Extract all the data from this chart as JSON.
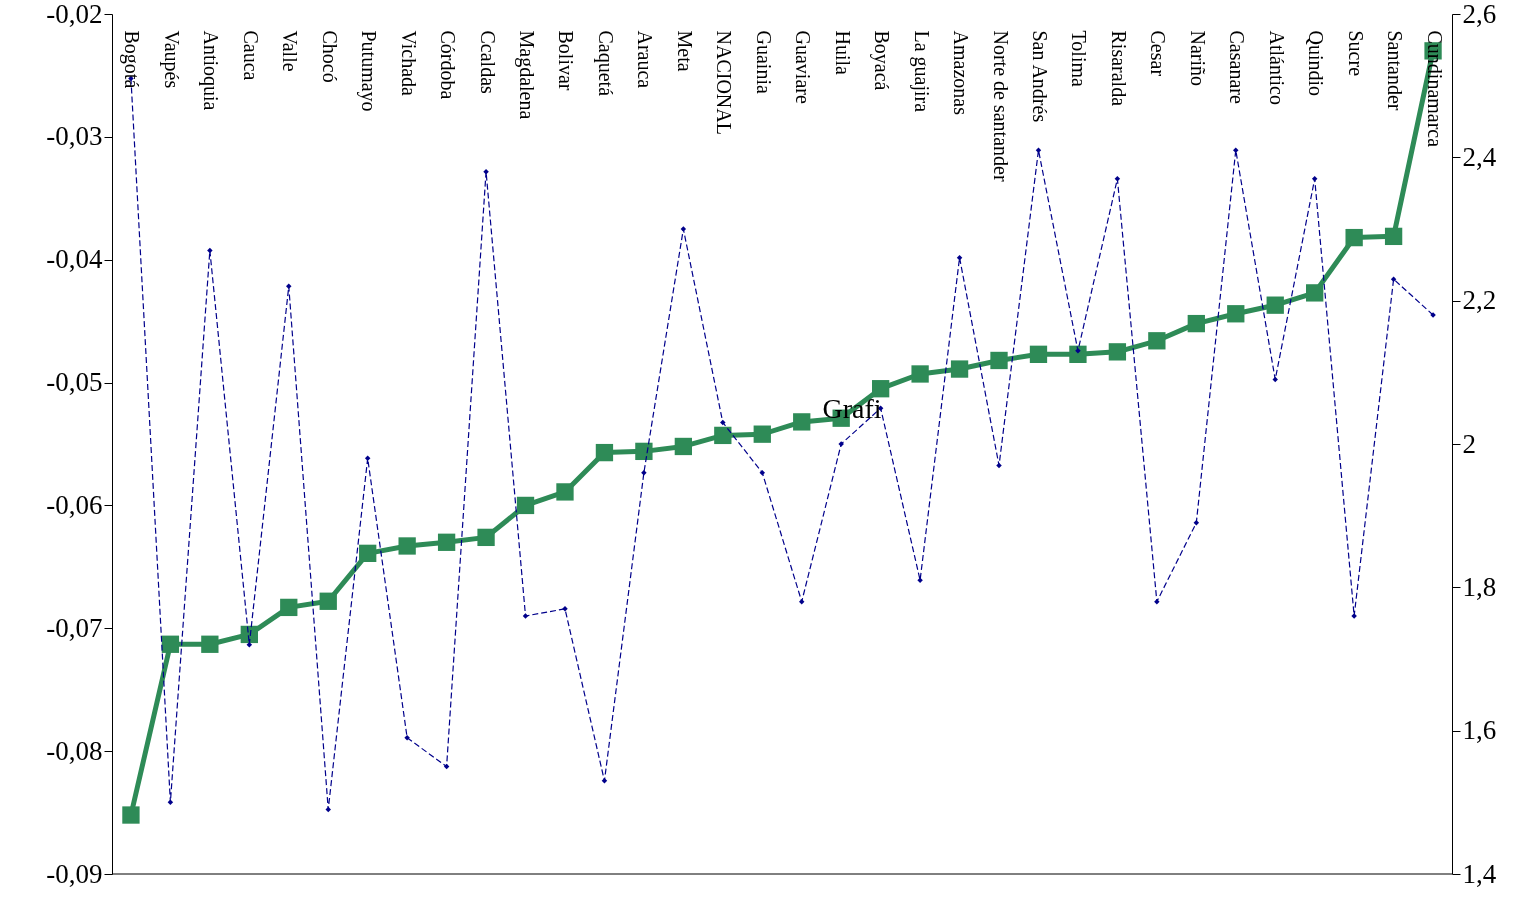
{
  "chart_data": {
    "type": "line",
    "categories": [
      "Bogotá",
      "Vaupés",
      "Antioquia",
      "Cauca",
      "Valle",
      "Chocó",
      "Putumayo",
      "Vichada",
      "Córdoba",
      "Ccaldas",
      "Magdalena",
      "Bolivar",
      "Caquetá",
      "Arauca",
      "Meta",
      "NACIONAL",
      "Guainia",
      "Guaviare",
      "Huila",
      "Boyacá",
      "La guajira",
      "Amazonas",
      "Norte de santander",
      "San Andrés",
      "Tolima",
      "Risaralda",
      "Cesar",
      "Nariño",
      "Casanare",
      "Atlántico",
      "Quindio",
      "Sucre",
      "Santander",
      "Cundinamarca"
    ],
    "series": [
      {
        "color": "#2e8b57",
        "marker": "square",
        "line_style": "solid",
        "values": [
          -0.0852,
          -0.0713,
          -0.0713,
          -0.0705,
          -0.0683,
          -0.0678,
          -0.0639,
          -0.0633,
          -0.063,
          -0.0626,
          -0.06,
          -0.0589,
          -0.0557,
          -0.0556,
          -0.0552,
          -0.0543,
          -0.0542,
          -0.0532,
          -0.0529,
          -0.0505,
          -0.0493,
          -0.0489,
          -0.0482,
          -0.0477,
          -0.0477,
          -0.0475,
          -0.0466,
          -0.0452,
          -0.0444,
          -0.0437,
          -0.0427,
          -0.0382,
          -0.0381,
          -0.023
        ]
      },
      {
        "color": "#00008b",
        "marker": "diamond",
        "line_style": "dashed",
        "axis": "y2",
        "values": [
          2.51,
          1.5,
          2.27,
          1.72,
          2.22,
          1.49,
          1.98,
          1.59,
          1.55,
          2.38,
          1.76,
          1.77,
          1.53,
          1.96,
          2.3,
          2.03,
          1.96,
          1.78,
          2.0,
          2.05,
          1.81,
          2.26,
          1.97,
          2.41,
          2.13,
          2.37,
          1.78,
          1.89,
          2.41,
          2.09,
          2.37,
          1.76,
          2.23,
          2.18
        ]
      }
    ],
    "ylim": [
      -0.09,
      -0.02
    ],
    "yticks": [
      {
        "value": -0.09,
        "label": "-0,09"
      },
      {
        "value": -0.08,
        "label": "-0,08"
      },
      {
        "value": -0.07,
        "label": "-0,07"
      },
      {
        "value": -0.06,
        "label": "-0,06"
      },
      {
        "value": -0.05,
        "label": "-0,05"
      },
      {
        "value": -0.04,
        "label": "-0,04"
      },
      {
        "value": -0.03,
        "label": "-0,03"
      },
      {
        "value": -0.02,
        "label": "-0,02"
      }
    ],
    "y2lim": [
      1.4,
      2.6
    ],
    "y2ticks": [
      {
        "value": 1.4,
        "label": "1,4"
      },
      {
        "value": 1.6,
        "label": "1,6"
      },
      {
        "value": 1.8,
        "label": "1,8"
      },
      2,
      {
        "value": 2.2,
        "label": "2,2"
      },
      {
        "value": 2.4,
        "label": "2,4"
      },
      {
        "value": 2.6,
        "label": "2,6"
      }
    ],
    "annotations": [
      "Grafi"
    ],
    "grid": false
  }
}
